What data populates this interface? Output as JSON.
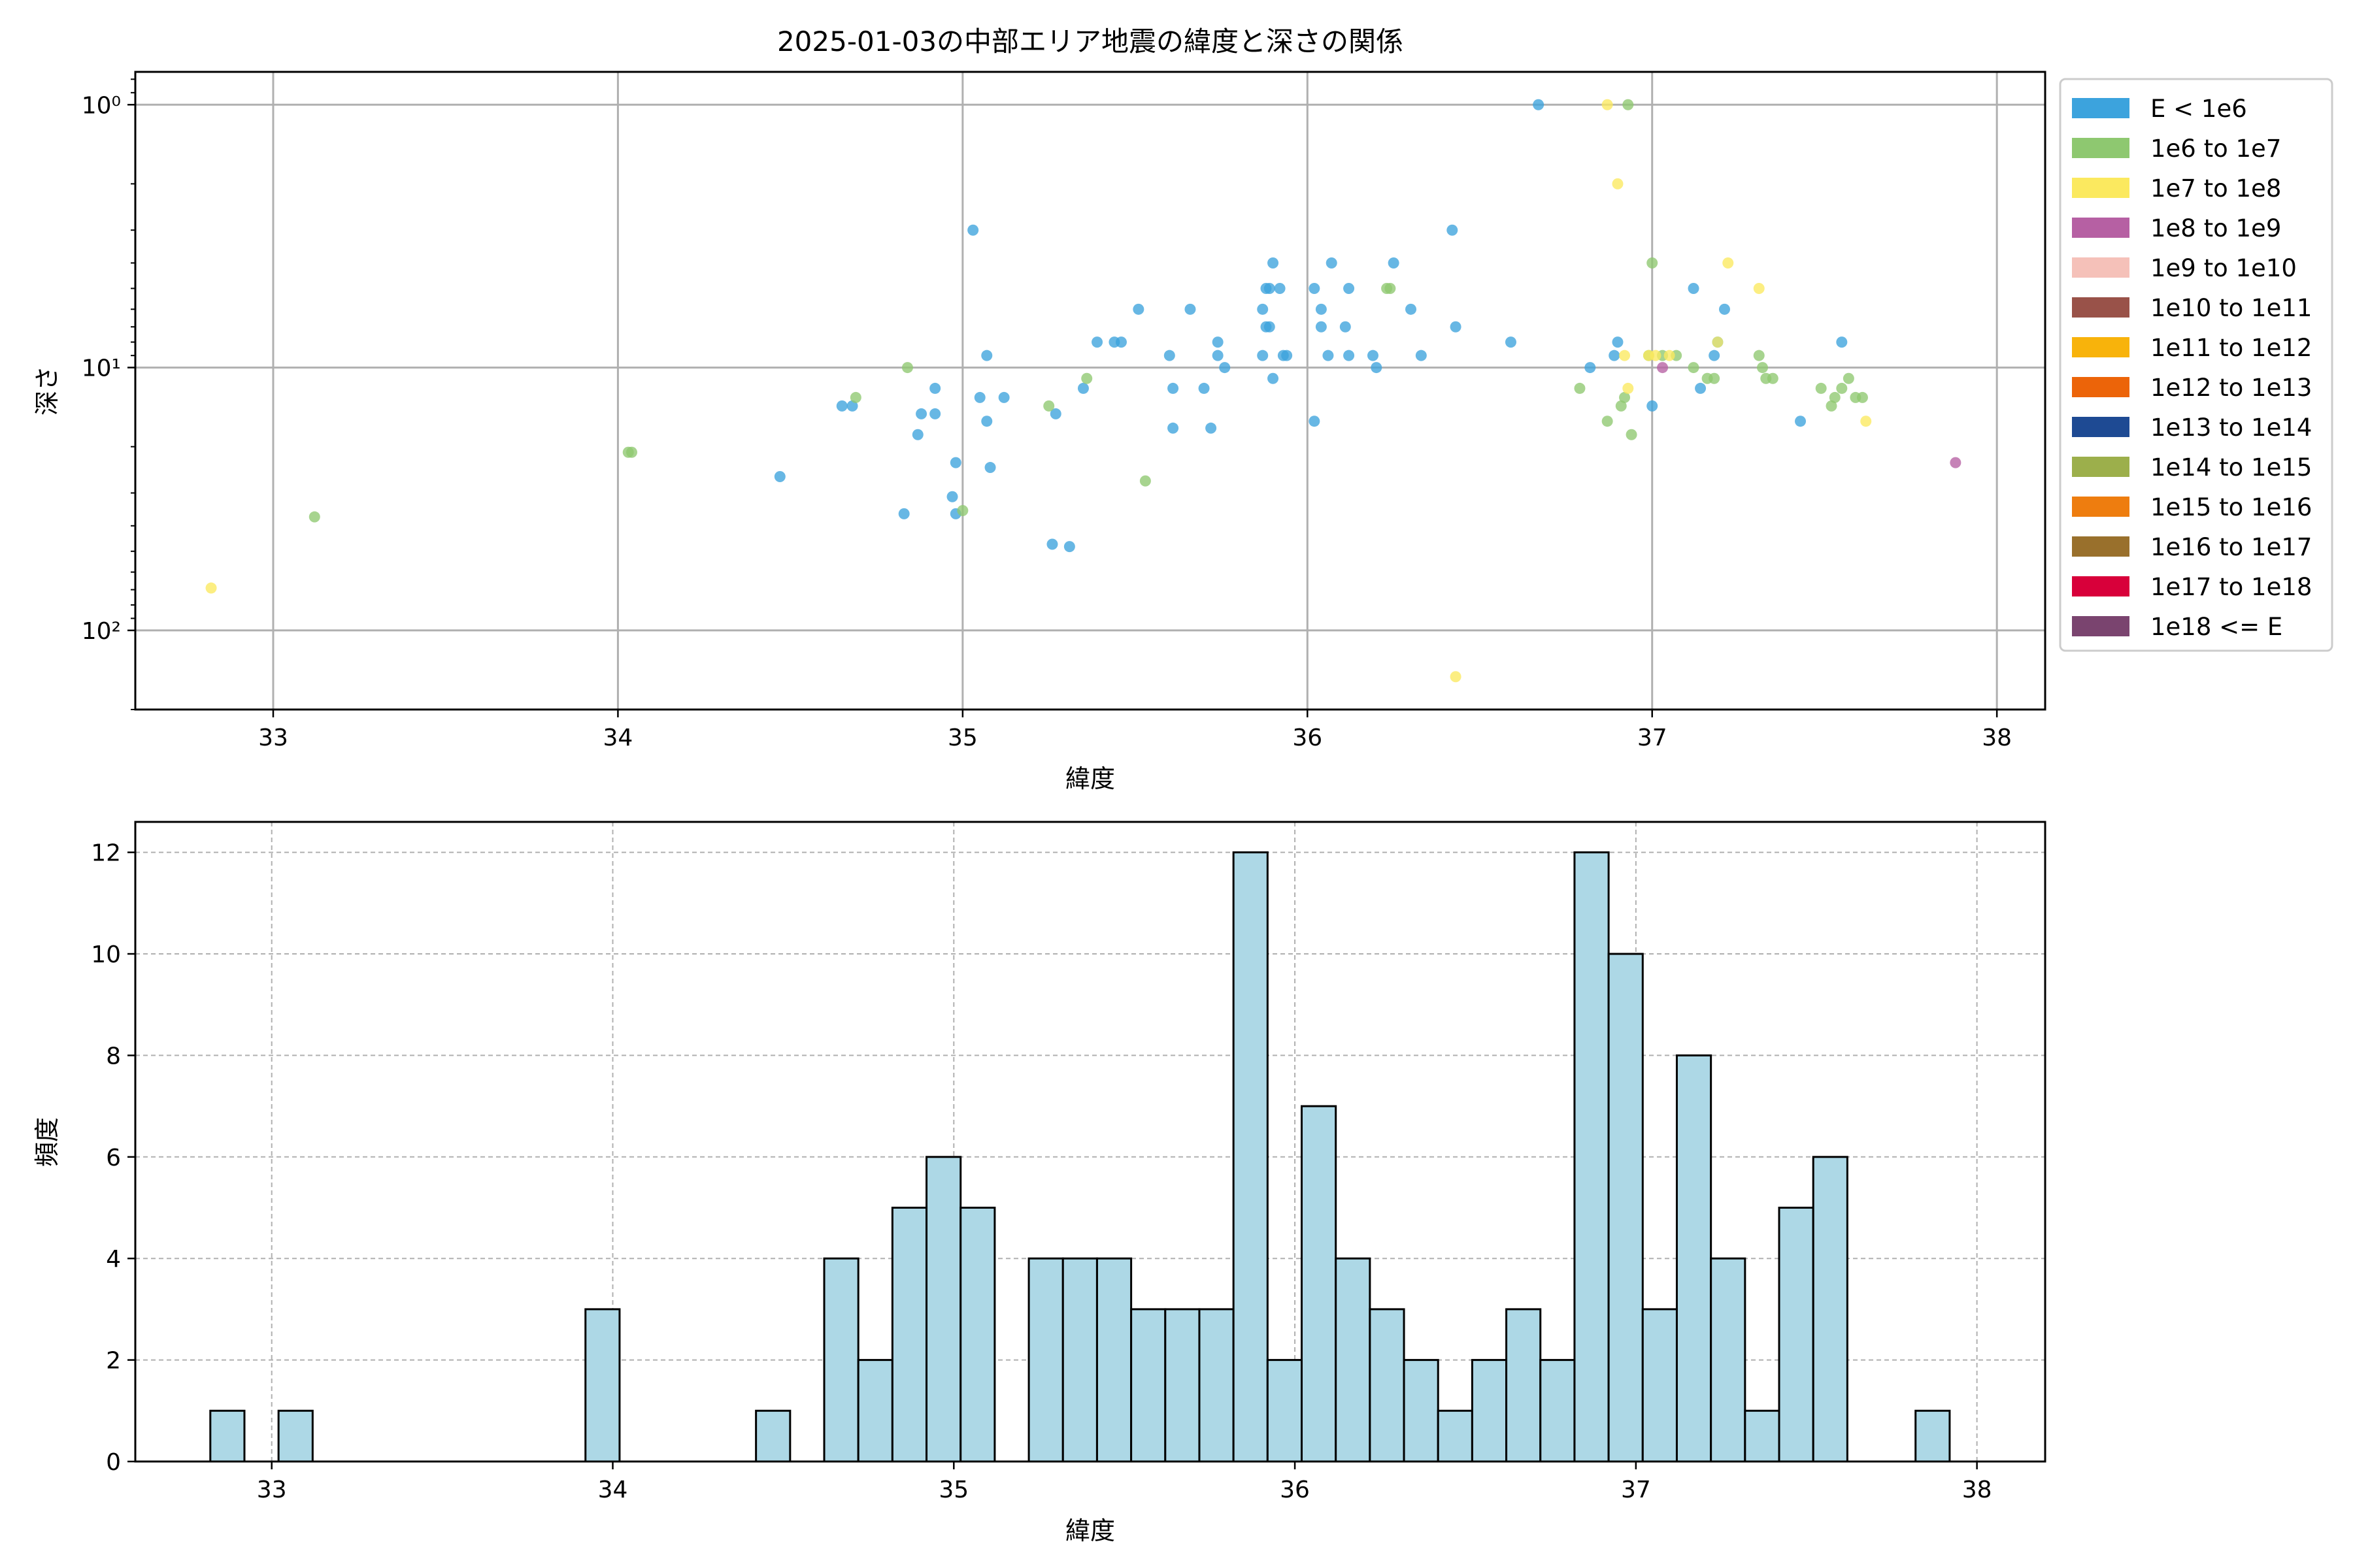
{
  "figure": {
    "title": "2025-01-03の中部エリア地震の緯度と深さの関係"
  },
  "chart_data": [
    {
      "type": "scatter",
      "xlabel": "緯度",
      "ylabel": "深さ",
      "xlim": [
        32.6,
        38.14
      ],
      "ylim": [
        200,
        0.75
      ],
      "yscale": "log",
      "y_inverted": true,
      "xticks": [
        33,
        34,
        35,
        36,
        37,
        38
      ],
      "yticks": [
        1,
        10,
        100
      ],
      "ytick_labels": [
        "10⁰",
        "10¹",
        "10²"
      ],
      "grid": true,
      "legend_position": "outside-right",
      "legend": [
        {
          "label": "E < 1e6",
          "color": "#3ca3dd"
        },
        {
          "label": "1e6 to 1e7",
          "color": "#8ec870"
        },
        {
          "label": "1e7 to 1e8",
          "color": "#fbe95f"
        },
        {
          "label": "1e8 to 1e9",
          "color": "#b660a3"
        },
        {
          "label": "1e9 to 1e10",
          "color": "#f5c1b9"
        },
        {
          "label": "1e10 to 1e11",
          "color": "#995249"
        },
        {
          "label": "1e11 to 1e12",
          "color": "#f8b30b"
        },
        {
          "label": "1e12 to 1e13",
          "color": "#ec6409"
        },
        {
          "label": "1e13 to 1e14",
          "color": "#1e4a93"
        },
        {
          "label": "1e14 to 1e15",
          "color": "#9caf4b"
        },
        {
          "label": "1e15 to 1e16",
          "color": "#ee7d0f"
        },
        {
          "label": "1e16 to 1e17",
          "color": "#99702c"
        },
        {
          "label": "1e17 to 1e18",
          "color": "#d8003a"
        },
        {
          "label": "1e18 <= E",
          "color": "#7a446f"
        }
      ],
      "series": [
        {
          "color": "#3ca3dd",
          "points": [
            [
              34.47,
              26
            ],
            [
              34.65,
              14
            ],
            [
              34.68,
              14
            ],
            [
              34.83,
              36
            ],
            [
              34.87,
              18
            ],
            [
              34.88,
              15
            ],
            [
              34.92,
              15
            ],
            [
              34.92,
              12
            ],
            [
              34.97,
              31
            ],
            [
              34.98,
              23
            ],
            [
              34.98,
              36
            ],
            [
              35.03,
              3
            ],
            [
              35.05,
              13
            ],
            [
              35.07,
              9
            ],
            [
              35.07,
              16
            ],
            [
              35.08,
              24
            ],
            [
              35.12,
              13
            ],
            [
              35.26,
              47
            ],
            [
              35.27,
              15
            ],
            [
              35.31,
              48
            ],
            [
              35.35,
              12
            ],
            [
              35.39,
              8
            ],
            [
              35.44,
              8
            ],
            [
              35.46,
              8
            ],
            [
              35.51,
              6
            ],
            [
              35.6,
              9
            ],
            [
              35.61,
              12
            ],
            [
              35.61,
              17
            ],
            [
              35.66,
              6
            ],
            [
              35.7,
              12
            ],
            [
              35.72,
              17
            ],
            [
              35.74,
              8
            ],
            [
              35.74,
              9
            ],
            [
              35.76,
              10
            ],
            [
              35.87,
              6
            ],
            [
              35.87,
              9
            ],
            [
              35.88,
              5
            ],
            [
              35.88,
              7
            ],
            [
              35.89,
              7
            ],
            [
              35.89,
              5
            ],
            [
              35.9,
              11
            ],
            [
              35.9,
              4
            ],
            [
              35.92,
              5
            ],
            [
              35.93,
              9
            ],
            [
              35.94,
              9
            ],
            [
              36.02,
              5
            ],
            [
              36.02,
              16
            ],
            [
              36.04,
              6
            ],
            [
              36.04,
              7
            ],
            [
              36.06,
              9
            ],
            [
              36.07,
              4
            ],
            [
              36.11,
              7
            ],
            [
              36.12,
              9
            ],
            [
              36.12,
              5
            ],
            [
              36.19,
              9
            ],
            [
              36.2,
              10
            ],
            [
              36.25,
              4
            ],
            [
              36.3,
              6
            ],
            [
              36.33,
              9
            ],
            [
              36.42,
              3
            ],
            [
              36.43,
              7
            ],
            [
              36.59,
              8
            ],
            [
              36.67,
              1
            ],
            [
              36.82,
              10
            ],
            [
              36.89,
              9
            ],
            [
              36.9,
              8
            ],
            [
              37.0,
              14
            ],
            [
              37.12,
              5
            ],
            [
              37.14,
              12
            ],
            [
              37.18,
              9
            ],
            [
              37.19,
              8
            ],
            [
              37.21,
              6
            ],
            [
              37.43,
              16
            ],
            [
              37.55,
              8
            ]
          ]
        },
        {
          "color": "#8ec870",
          "points": [
            [
              33.12,
              37
            ],
            [
              34.03,
              21
            ],
            [
              34.04,
              21
            ],
            [
              34.69,
              13
            ],
            [
              34.84,
              10
            ],
            [
              35.0,
              35
            ],
            [
              35.25,
              14
            ],
            [
              35.36,
              11
            ],
            [
              35.53,
              27
            ],
            [
              36.23,
              5
            ],
            [
              36.24,
              5
            ],
            [
              36.79,
              12
            ],
            [
              36.87,
              16
            ],
            [
              36.91,
              14
            ],
            [
              36.92,
              13
            ],
            [
              36.93,
              1
            ],
            [
              36.94,
              18
            ],
            [
              36.99,
              9
            ],
            [
              37.0,
              4
            ],
            [
              37.03,
              9
            ],
            [
              37.07,
              9
            ],
            [
              37.12,
              10
            ],
            [
              37.16,
              11
            ],
            [
              37.18,
              11
            ],
            [
              37.31,
              9
            ],
            [
              37.32,
              10
            ],
            [
              37.33,
              11
            ],
            [
              37.35,
              11
            ],
            [
              37.49,
              12
            ],
            [
              37.52,
              14
            ],
            [
              37.53,
              13
            ],
            [
              37.55,
              12
            ],
            [
              37.57,
              11
            ],
            [
              37.59,
              13
            ],
            [
              37.61,
              13
            ]
          ]
        },
        {
          "color": "#fbe95f",
          "points": [
            [
              32.82,
              69
            ],
            [
              36.43,
              150
            ],
            [
              36.87,
              1
            ],
            [
              36.9,
              2
            ],
            [
              36.92,
              9
            ],
            [
              36.93,
              12
            ],
            [
              36.99,
              9
            ],
            [
              37.01,
              9
            ],
            [
              37.05,
              9
            ],
            [
              37.19,
              8
            ],
            [
              37.22,
              4
            ],
            [
              37.31,
              5
            ],
            [
              37.62,
              16
            ]
          ]
        },
        {
          "color": "#b660a3",
          "points": [
            [
              37.03,
              10
            ],
            [
              37.88,
              23
            ]
          ]
        }
      ]
    },
    {
      "type": "bar",
      "xlabel": "緯度",
      "ylabel": "頻度",
      "xlim": [
        32.6,
        38.2
      ],
      "ylim": [
        0,
        12.6
      ],
      "xticks": [
        33,
        34,
        35,
        36,
        37,
        38
      ],
      "yticks": [
        0,
        2,
        4,
        6,
        8,
        10,
        12
      ],
      "grid": true,
      "bar_color": "#add8e6",
      "edge_color": "#000000",
      "bin_start": 32.82,
      "bin_width": 0.1,
      "values": [
        1,
        0,
        1,
        0,
        0,
        0,
        0,
        0,
        0,
        0,
        0,
        3,
        0,
        0,
        0,
        0,
        1,
        0,
        4,
        2,
        5,
        6,
        5,
        0,
        4,
        4,
        4,
        3,
        3,
        3,
        12,
        2,
        7,
        4,
        3,
        2,
        1,
        2,
        3,
        2,
        12,
        10,
        3,
        8,
        4,
        1,
        5,
        6,
        0,
        0,
        1
      ]
    }
  ]
}
